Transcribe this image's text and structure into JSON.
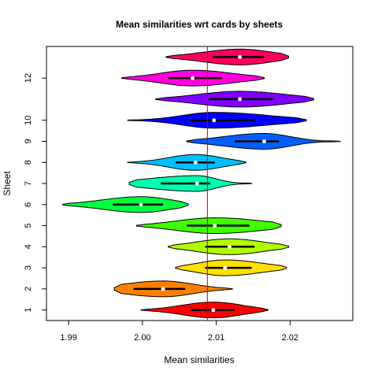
{
  "chart_data": {
    "type": "violin",
    "title": "Mean similarities wrt cards by sheets",
    "xlabel": "Mean similarities",
    "ylabel": "Sheet",
    "xlim": [
      1.987,
      2.0285
    ],
    "ylim": [
      0.5,
      13.5
    ],
    "x_ticks": [
      1.99,
      2.0,
      2.01,
      2.02
    ],
    "x_tick_labels": [
      "1.99",
      "2.00",
      "2.01",
      "2.02"
    ],
    "y_ticks": [
      1,
      2,
      3,
      4,
      5,
      6,
      7,
      8,
      9,
      10,
      12
    ],
    "y_tick_labels": [
      "1",
      "2",
      "3",
      "4",
      "5",
      "6",
      "7",
      "8",
      "9",
      "10",
      "12"
    ],
    "reference_line": {
      "x": 2.0088,
      "color": "#cc0000"
    },
    "series": [
      {
        "sheet": 1,
        "color": "#ff0000",
        "min": 1.9998,
        "max": 2.017,
        "q1": 2.0065,
        "q3": 2.0125,
        "median": 2.0096
      },
      {
        "sheet": 2,
        "color": "#ff8000",
        "min": 1.9962,
        "max": 2.0122,
        "q1": 1.9988,
        "q3": 2.0058,
        "median": 2.0028
      },
      {
        "sheet": 3,
        "color": "#ffe000",
        "min": 2.0045,
        "max": 2.0195,
        "q1": 2.0085,
        "q3": 2.0148,
        "median": 2.0112
      },
      {
        "sheet": 4,
        "color": "#b0ff00",
        "min": 2.0035,
        "max": 2.0198,
        "q1": 2.0085,
        "q3": 2.0152,
        "median": 2.0118
      },
      {
        "sheet": 5,
        "color": "#40ff00",
        "min": 1.9992,
        "max": 2.0188,
        "q1": 2.006,
        "q3": 2.0145,
        "median": 2.0098
      },
      {
        "sheet": 6,
        "color": "#00ff40",
        "min": 1.9892,
        "max": 2.0062,
        "q1": 1.996,
        "q3": 2.0028,
        "median": 1.9998
      },
      {
        "sheet": 7,
        "color": "#00ffb0",
        "min": 1.9982,
        "max": 2.0148,
        "q1": 2.0025,
        "q3": 2.0092,
        "median": 2.0074
      },
      {
        "sheet": 8,
        "color": "#00c0ff",
        "min": 1.998,
        "max": 2.014,
        "q1": 2.0045,
        "q3": 2.0098,
        "median": 2.0072
      },
      {
        "sheet": 9,
        "color": "#0060ff",
        "min": 2.006,
        "max": 2.0268,
        "q1": 2.0125,
        "q3": 2.0185,
        "median": 2.0165
      },
      {
        "sheet": 10,
        "color": "#0000ff",
        "min": 1.998,
        "max": 2.0222,
        "q1": 2.0065,
        "q3": 2.0152,
        "median": 2.0097
      },
      {
        "sheet": 11,
        "color": "#8000ff",
        "min": 2.0018,
        "max": 2.0232,
        "q1": 2.009,
        "q3": 2.0178,
        "median": 2.0132
      },
      {
        "sheet": 12,
        "color": "#ff00e0",
        "min": 1.9972,
        "max": 2.0165,
        "q1": 2.0035,
        "q3": 2.0108,
        "median": 2.0068
      },
      {
        "sheet": 13,
        "color": "#ff0060",
        "min": 2.0032,
        "max": 2.0198,
        "q1": 2.0095,
        "q3": 2.0165,
        "median": 2.0132
      }
    ]
  }
}
